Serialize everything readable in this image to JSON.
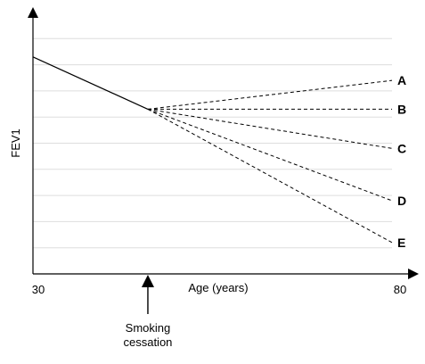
{
  "chart_data": {
    "type": "line",
    "xlabel": "Age (years)",
    "ylabel": "FEV1",
    "x_tick_labels": [
      "30",
      "80"
    ],
    "xlim": [
      30,
      80
    ],
    "ylim": [
      0,
      10
    ],
    "grid": true,
    "gridlines_y": [
      1,
      2,
      3,
      4,
      5,
      6,
      7,
      8,
      9
    ],
    "baseline_series": {
      "style": "solid",
      "points": [
        [
          30,
          8.3
        ],
        [
          46,
          6.3
        ]
      ]
    },
    "series": [
      {
        "name": "A",
        "style": "dashed",
        "points": [
          [
            46,
            6.3
          ],
          [
            80,
            7.4
          ]
        ]
      },
      {
        "name": "B",
        "style": "dashed",
        "points": [
          [
            46,
            6.3
          ],
          [
            80,
            6.3
          ]
        ]
      },
      {
        "name": "C",
        "style": "dashed",
        "points": [
          [
            46,
            6.3
          ],
          [
            80,
            4.8
          ]
        ]
      },
      {
        "name": "D",
        "style": "dashed",
        "points": [
          [
            46,
            6.3
          ],
          [
            80,
            2.8
          ]
        ]
      },
      {
        "name": "E",
        "style": "dashed",
        "points": [
          [
            46,
            6.3
          ],
          [
            80,
            1.2
          ]
        ]
      }
    ],
    "annotations": [
      {
        "text": "Smoking cessation",
        "lines": [
          "Smoking",
          "cessation"
        ],
        "x": 46,
        "type": "arrow-up-below-axis"
      }
    ],
    "colors": {
      "line": "#000000",
      "grid": "#dddddd",
      "axis": "#000000"
    }
  }
}
